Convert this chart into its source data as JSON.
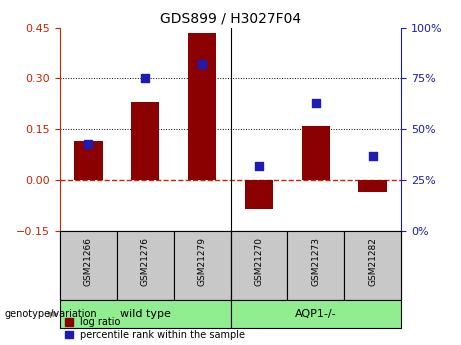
{
  "title": "GDS899 / H3027F04",
  "samples": [
    "GSM21266",
    "GSM21276",
    "GSM21279",
    "GSM21270",
    "GSM21273",
    "GSM21282"
  ],
  "log_ratio": [
    0.115,
    0.23,
    0.435,
    -0.085,
    0.16,
    -0.035
  ],
  "percentile_rank": [
    43,
    75,
    82,
    32,
    63,
    37
  ],
  "bar_color": "#8B0000",
  "dot_color": "#1C1CB4",
  "ylim_left": [
    -0.15,
    0.45
  ],
  "ylim_right": [
    0,
    100
  ],
  "yticks_left": [
    -0.15,
    0,
    0.15,
    0.3,
    0.45
  ],
  "yticks_right": [
    0,
    25,
    50,
    75,
    100
  ],
  "hlines": [
    0.15,
    0.3
  ],
  "zero_line_color": "#CC2200",
  "hline_color": "#000000",
  "left_axis_color": "#CC2200",
  "right_axis_color": "#1C1CB4",
  "legend_red_label": "log ratio",
  "legend_blue_label": "percentile rank within the sample",
  "genotype_label": "genotype/variation",
  "tick_area_bg": "#C8C8C8",
  "group_bg": "#90EE90",
  "group_labels": [
    "wild type",
    "AQP1-/-"
  ],
  "title_fontsize": 10,
  "axis_fontsize": 8,
  "label_fontsize": 8
}
